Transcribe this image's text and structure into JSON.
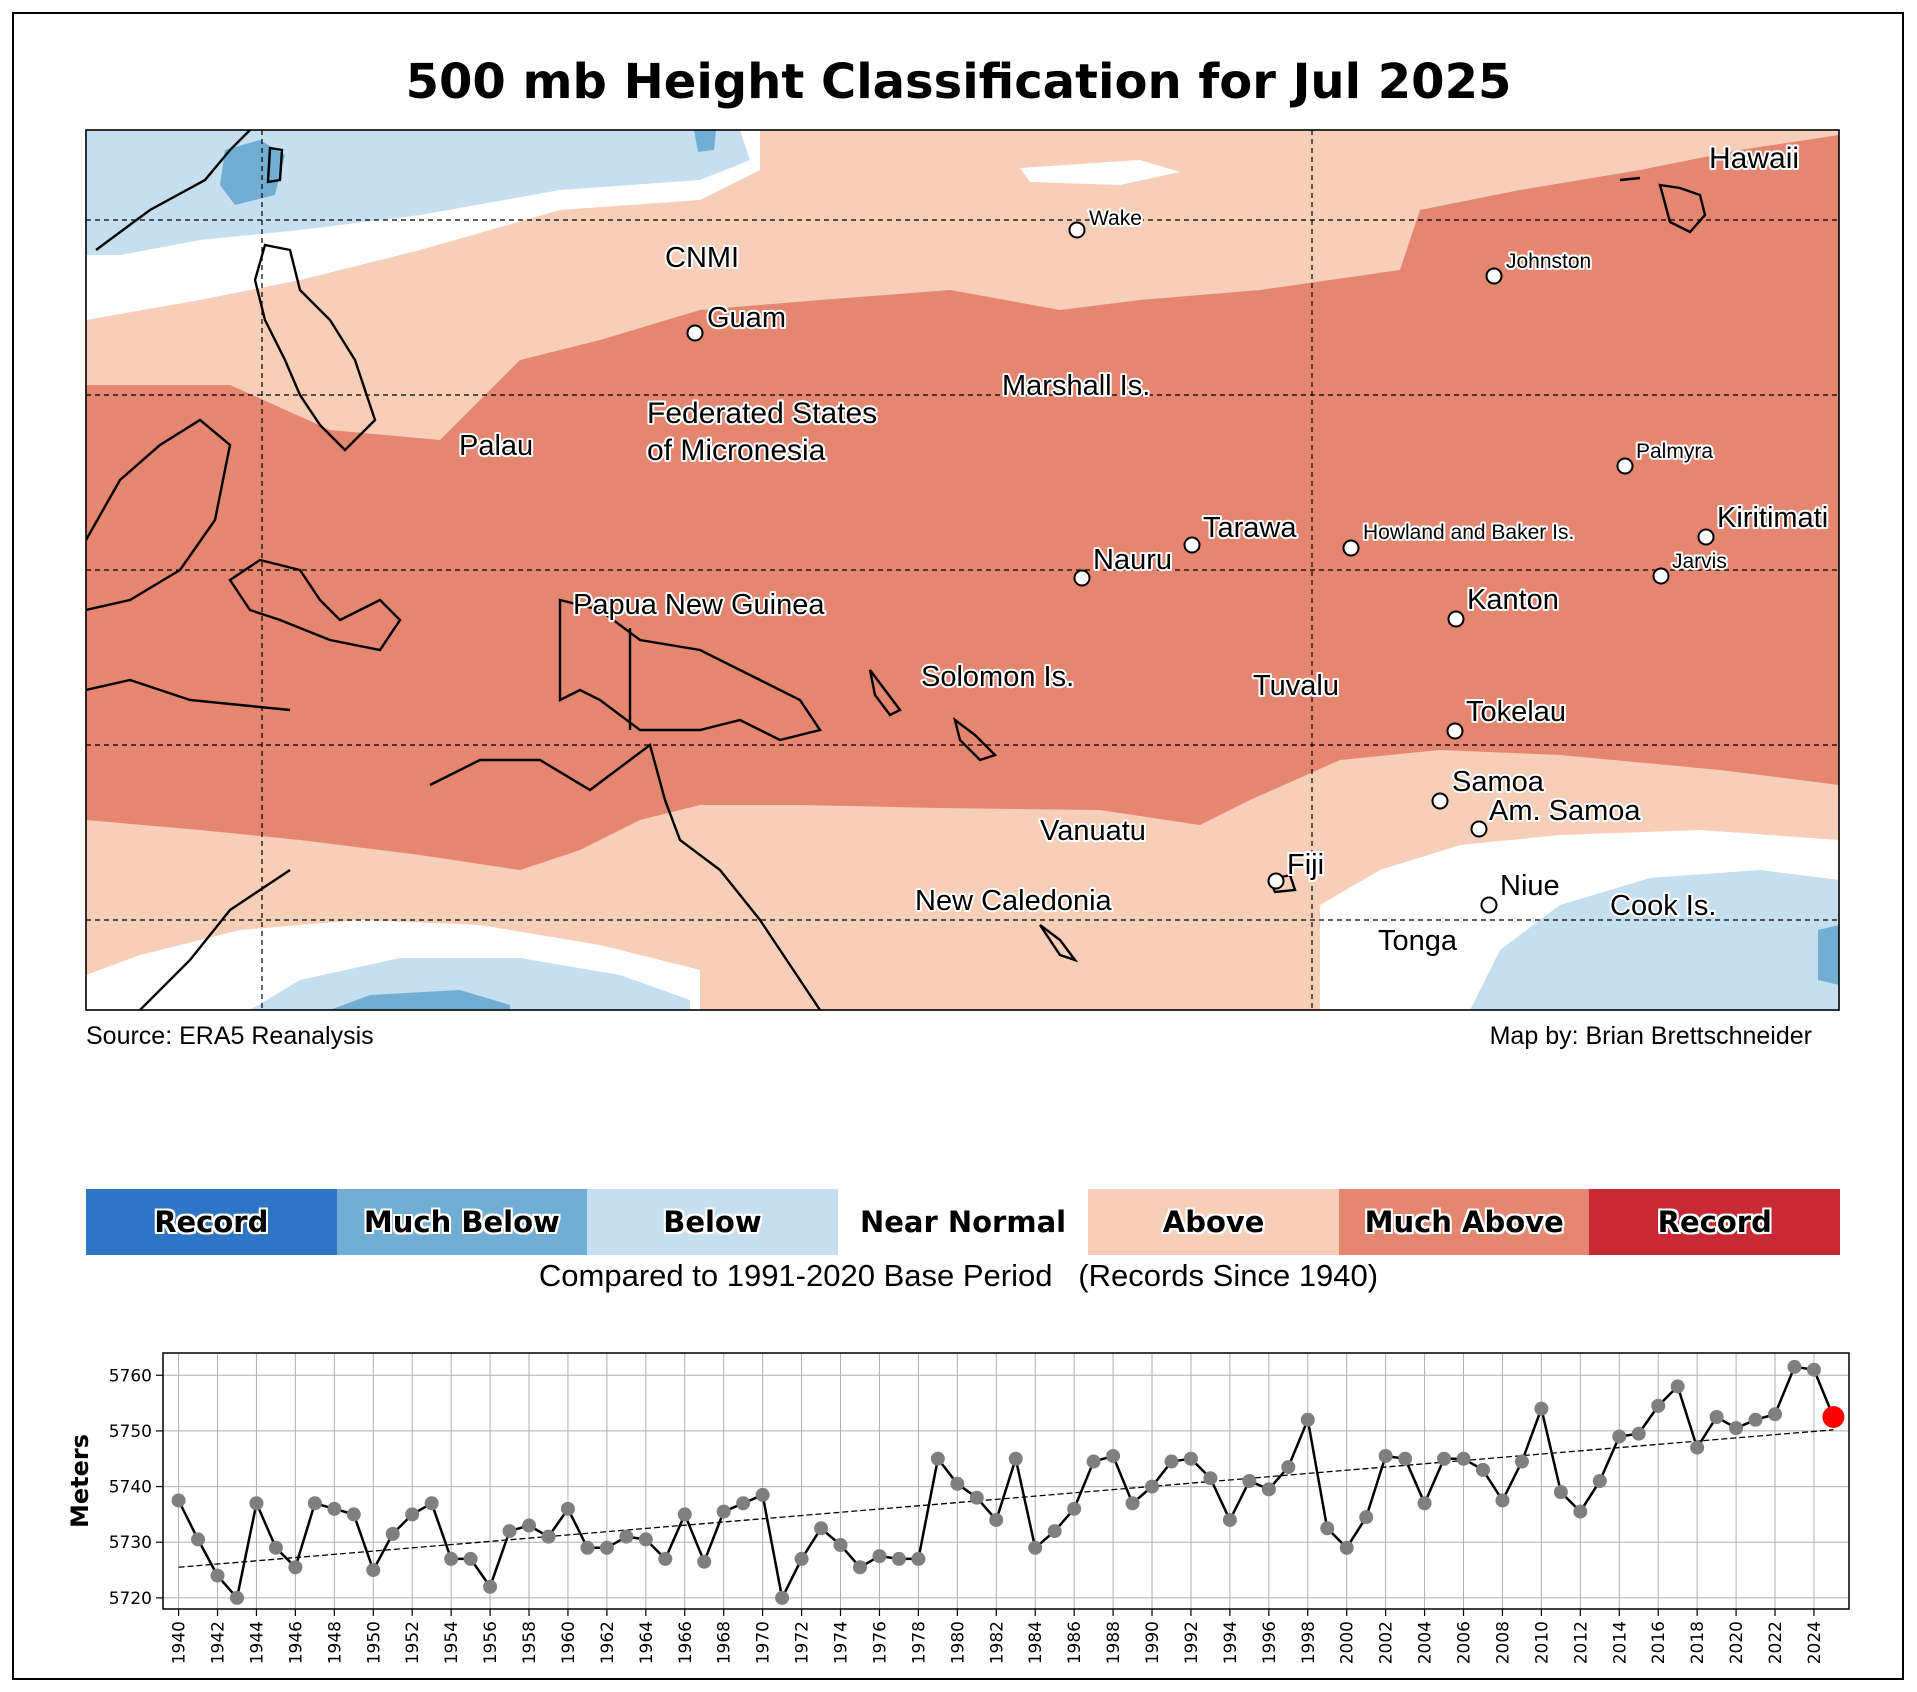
{
  "title": "500 mb Height Classification for Jul 2025",
  "map": {
    "source": "Source: ERA5 Reanalysis",
    "credit": "Map by: Brian Brettschneider",
    "places": [
      {
        "name": "Hawaii",
        "dot": false
      },
      {
        "name": "Wake",
        "dot": true
      },
      {
        "name": "Johnston",
        "dot": true
      },
      {
        "name": "CNMI",
        "dot": false
      },
      {
        "name": "Guam",
        "dot": true
      },
      {
        "name": "Marshall Is.",
        "dot": false
      },
      {
        "name": "Federated States",
        "dot": false
      },
      {
        "name": "of Micronesia",
        "dot": false
      },
      {
        "name": "Palau",
        "dot": false
      },
      {
        "name": "Palmyra",
        "dot": true
      },
      {
        "name": "Tarawa",
        "dot": true
      },
      {
        "name": "Howland and Baker Is.",
        "dot": true
      },
      {
        "name": "Kiritimati",
        "dot": true
      },
      {
        "name": "Nauru",
        "dot": true
      },
      {
        "name": "Jarvis",
        "dot": true
      },
      {
        "name": "Papua New Guinea",
        "dot": false
      },
      {
        "name": "Kanton",
        "dot": true
      },
      {
        "name": "Solomon Is.",
        "dot": false
      },
      {
        "name": "Tuvalu",
        "dot": false
      },
      {
        "name": "Tokelau",
        "dot": true
      },
      {
        "name": "Samoa",
        "dot": true
      },
      {
        "name": "Am. Samoa",
        "dot": true
      },
      {
        "name": "Vanuatu",
        "dot": false
      },
      {
        "name": "Fiji",
        "dot": true
      },
      {
        "name": "Niue",
        "dot": true
      },
      {
        "name": "New Caledonia",
        "dot": false
      },
      {
        "name": "Cook Is.",
        "dot": false
      },
      {
        "name": "Tonga",
        "dot": false
      }
    ]
  },
  "legend": {
    "items": [
      {
        "label": "Record",
        "color": "#2e75c6"
      },
      {
        "label": "Much Below",
        "color": "#72aed3"
      },
      {
        "label": "Below",
        "color": "#c5def0"
      },
      {
        "label": "Near Normal",
        "color": "#ffffff"
      },
      {
        "label": "Above",
        "color": "#f7ceb8"
      },
      {
        "label": "Much Above",
        "color": "#e48670"
      },
      {
        "label": "Record",
        "color": "#c72a35"
      }
    ],
    "caption": "Compared to 1991-2020 Base Period   (Records Since 1940)"
  },
  "chart_data": {
    "type": "line",
    "ylabel": "Meters",
    "ylim": [
      5718,
      5764
    ],
    "yticks": [
      5720,
      5730,
      5740,
      5750,
      5760
    ],
    "xlim": [
      1939.2,
      2025.8
    ],
    "xticks": [
      1940,
      1942,
      1944,
      1946,
      1948,
      1950,
      1952,
      1954,
      1956,
      1958,
      1960,
      1962,
      1964,
      1966,
      1968,
      1970,
      1972,
      1974,
      1976,
      1978,
      1980,
      1982,
      1984,
      1986,
      1988,
      1990,
      1992,
      1994,
      1996,
      1998,
      2000,
      2002,
      2004,
      2006,
      2008,
      2010,
      2012,
      2014,
      2016,
      2018,
      2020,
      2022,
      2024
    ],
    "grid": true,
    "x_start": 1940,
    "values": [
      5737.5,
      5730.5,
      5724,
      5720,
      5737,
      5729,
      5725.5,
      5737,
      5736,
      5735,
      5725,
      5731.5,
      5735,
      5737,
      5727,
      5727,
      5722,
      5732,
      5733,
      5731,
      5736,
      5729,
      5729,
      5731,
      5730.5,
      5727,
      5735,
      5726.5,
      5735.5,
      5737,
      5738.5,
      5720,
      5727,
      5732.5,
      5729.5,
      5725.5,
      5727.5,
      5727,
      5727,
      5745,
      5740.5,
      5738,
      5734,
      5745,
      5729,
      5732,
      5736,
      5744.5,
      5745.5,
      5737,
      5740,
      5744.5,
      5745,
      5741.5,
      5734,
      5741,
      5739.5,
      5743.5,
      5752,
      5732.5,
      5729,
      5734.5,
      5745.5,
      5745,
      5737,
      5745,
      5745,
      5743,
      5737.5,
      5744.5,
      5754,
      5739,
      5735.5,
      5741,
      5749,
      5749.5,
      5754.5,
      5758,
      5747,
      5752.5,
      5750.5,
      5752,
      5753,
      5761.5,
      5761,
      5752.5
    ],
    "trend": [
      5725.5,
      5750.2
    ],
    "highlight_year": 2025,
    "line_color": "#000000",
    "marker_color": "#7f7f7f",
    "highlight_color": "#ff0000"
  }
}
